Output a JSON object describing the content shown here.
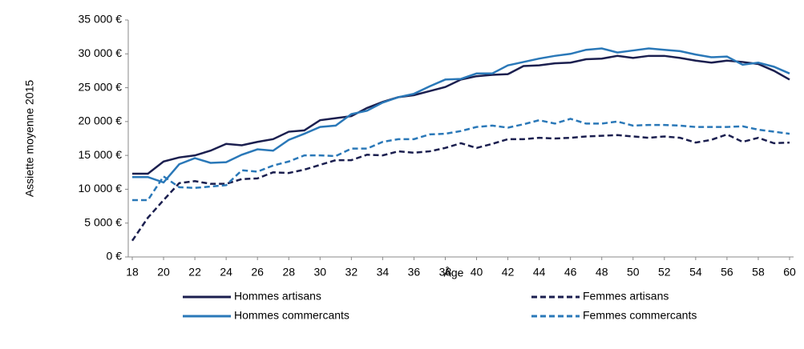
{
  "chart_data": {
    "type": "line",
    "x": [
      18,
      19,
      20,
      21,
      22,
      23,
      24,
      25,
      26,
      27,
      28,
      29,
      30,
      31,
      32,
      33,
      34,
      35,
      36,
      37,
      38,
      39,
      40,
      41,
      42,
      43,
      44,
      45,
      46,
      47,
      48,
      49,
      50,
      51,
      52,
      53,
      54,
      55,
      56,
      57,
      58,
      59,
      60
    ],
    "xlim": [
      18,
      60
    ],
    "xticks": [
      18,
      20,
      22,
      24,
      26,
      28,
      30,
      32,
      34,
      36,
      38,
      40,
      42,
      44,
      46,
      48,
      50,
      52,
      54,
      56,
      58,
      60
    ],
    "ylim": [
      0,
      35000
    ],
    "yticks": [
      {
        "value": 0,
        "label": "0 €"
      },
      {
        "value": 5000,
        "label": "5 000 €"
      },
      {
        "value": 10000,
        "label": "10 000 €"
      },
      {
        "value": 15000,
        "label": "15 000 €"
      },
      {
        "value": 20000,
        "label": "20 000 €"
      },
      {
        "value": 25000,
        "label": "25 000 €"
      },
      {
        "value": 30000,
        "label": "30 000 €"
      },
      {
        "value": 35000,
        "label": "35 000 €"
      }
    ],
    "xlabel": "Âge",
    "ylabel": "Assiette moyenne 2015",
    "grid": false,
    "series": [
      {
        "name": "Hommes artisans",
        "color": "#1b1f4f",
        "dashed": false,
        "values": [
          12300,
          12300,
          14100,
          14700,
          15000,
          15700,
          16700,
          16500,
          17000,
          17400,
          18500,
          18700,
          20200,
          20500,
          20800,
          22000,
          22900,
          23600,
          23900,
          24500,
          25100,
          26200,
          26700,
          26900,
          27000,
          28200,
          28300,
          28600,
          28700,
          29200,
          29300,
          29700,
          29400,
          29700,
          29700,
          29400,
          29000,
          28700,
          29000,
          28800,
          28500,
          27500,
          26200
        ]
      },
      {
        "name": "Femmes artisans",
        "color": "#1b1f4f",
        "dashed": true,
        "values": [
          2400,
          5800,
          8400,
          10900,
          11200,
          10800,
          10800,
          11500,
          11600,
          12500,
          12400,
          12900,
          13600,
          14300,
          14300,
          15100,
          15000,
          15600,
          15400,
          15600,
          16100,
          16800,
          16100,
          16700,
          17400,
          17400,
          17600,
          17500,
          17600,
          17800,
          17900,
          18000,
          17800,
          17600,
          17800,
          17600,
          16900,
          17300,
          18100,
          17000,
          17600,
          16800,
          16900
        ]
      },
      {
        "name": "Hommes commercants",
        "color": "#2a78b8",
        "dashed": false,
        "values": [
          11800,
          11800,
          11000,
          13700,
          14600,
          13900,
          14000,
          15100,
          15900,
          15700,
          17300,
          18200,
          19200,
          19400,
          21100,
          21600,
          22800,
          23600,
          24100,
          25200,
          26200,
          26300,
          27100,
          27100,
          28300,
          28800,
          29300,
          29700,
          30000,
          30600,
          30800,
          30200,
          30500,
          30800,
          30600,
          30400,
          29900,
          29500,
          29600,
          28400,
          28700,
          28100,
          27100
        ]
      },
      {
        "name": "Femmes commercants",
        "color": "#2a78b8",
        "dashed": true,
        "values": [
          8400,
          8400,
          11900,
          10300,
          10200,
          10400,
          10600,
          12800,
          12600,
          13500,
          14100,
          15000,
          15000,
          14900,
          16000,
          16000,
          17000,
          17400,
          17400,
          18100,
          18200,
          18600,
          19200,
          19400,
          19100,
          19600,
          20200,
          19700,
          20400,
          19700,
          19700,
          20000,
          19400,
          19500,
          19500,
          19400,
          19200,
          19200,
          19200,
          19300,
          18800,
          18500,
          18200
        ]
      }
    ]
  }
}
